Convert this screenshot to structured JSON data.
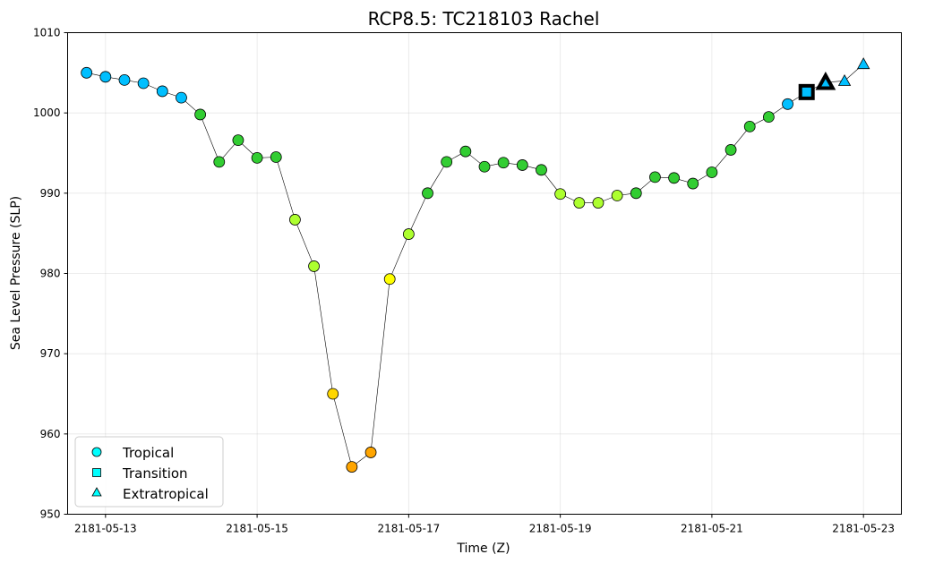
{
  "chart_data": {
    "type": "scatter",
    "title": "RCP8.5: TC218103 Rachel",
    "xlabel": "Time (Z)",
    "ylabel": "Sea Level Pressure (SLP)",
    "ylim": [
      950,
      1010
    ],
    "yticks": [
      950,
      960,
      970,
      980,
      990,
      1000,
      1010
    ],
    "xlim": [
      "2181-05-12 12:00",
      "2181-05-23 12:00"
    ],
    "xticks": [
      "2181-05-13",
      "2181-05-15",
      "2181-05-17",
      "2181-05-19",
      "2181-05-21",
      "2181-05-23"
    ],
    "grid": true,
    "legend_position": "bottom-left",
    "legend": [
      {
        "label": "Tropical",
        "marker": "circle"
      },
      {
        "label": "Transition",
        "marker": "square"
      },
      {
        "label": "Extratropical",
        "marker": "triangle"
      }
    ],
    "colors": {
      "td": "#00bfff",
      "ts": "#32cd32",
      "cat1": "#adff2f",
      "cat2": "#ffff00",
      "cat3": "#ffd700",
      "cat4": "#ffa500",
      "legend_marker": "#00ffff",
      "line": "#000000",
      "edge": "#000000"
    },
    "points": [
      {
        "time": "2181-05-12 18:00",
        "slp": 1005.0,
        "type": "tropical",
        "color": "td"
      },
      {
        "time": "2181-05-13 00:00",
        "slp": 1004.5,
        "type": "tropical",
        "color": "td"
      },
      {
        "time": "2181-05-13 06:00",
        "slp": 1004.1,
        "type": "tropical",
        "color": "td"
      },
      {
        "time": "2181-05-13 12:00",
        "slp": 1003.7,
        "type": "tropical",
        "color": "td"
      },
      {
        "time": "2181-05-13 18:00",
        "slp": 1002.7,
        "type": "tropical",
        "color": "td"
      },
      {
        "time": "2181-05-14 00:00",
        "slp": 1001.9,
        "type": "tropical",
        "color": "td"
      },
      {
        "time": "2181-05-14 06:00",
        "slp": 999.8,
        "type": "tropical",
        "color": "ts"
      },
      {
        "time": "2181-05-14 12:00",
        "slp": 993.9,
        "type": "tropical",
        "color": "ts"
      },
      {
        "time": "2181-05-14 18:00",
        "slp": 996.6,
        "type": "tropical",
        "color": "ts"
      },
      {
        "time": "2181-05-15 00:00",
        "slp": 994.4,
        "type": "tropical",
        "color": "ts"
      },
      {
        "time": "2181-05-15 06:00",
        "slp": 994.5,
        "type": "tropical",
        "color": "ts"
      },
      {
        "time": "2181-05-15 12:00",
        "slp": 986.7,
        "type": "tropical",
        "color": "cat1"
      },
      {
        "time": "2181-05-15 18:00",
        "slp": 980.9,
        "type": "tropical",
        "color": "cat1"
      },
      {
        "time": "2181-05-16 00:00",
        "slp": 965.0,
        "type": "tropical",
        "color": "cat3"
      },
      {
        "time": "2181-05-16 06:00",
        "slp": 955.9,
        "type": "tropical",
        "color": "cat4"
      },
      {
        "time": "2181-05-16 12:00",
        "slp": 957.7,
        "type": "tropical",
        "color": "cat4"
      },
      {
        "time": "2181-05-16 18:00",
        "slp": 979.3,
        "type": "tropical",
        "color": "cat2"
      },
      {
        "time": "2181-05-17 00:00",
        "slp": 984.9,
        "type": "tropical",
        "color": "cat1"
      },
      {
        "time": "2181-05-17 06:00",
        "slp": 990.0,
        "type": "tropical",
        "color": "ts"
      },
      {
        "time": "2181-05-17 12:00",
        "slp": 993.9,
        "type": "tropical",
        "color": "ts"
      },
      {
        "time": "2181-05-17 18:00",
        "slp": 995.2,
        "type": "tropical",
        "color": "ts"
      },
      {
        "time": "2181-05-18 00:00",
        "slp": 993.3,
        "type": "tropical",
        "color": "ts"
      },
      {
        "time": "2181-05-18 06:00",
        "slp": 993.8,
        "type": "tropical",
        "color": "ts"
      },
      {
        "time": "2181-05-18 12:00",
        "slp": 993.5,
        "type": "tropical",
        "color": "ts"
      },
      {
        "time": "2181-05-18 18:00",
        "slp": 992.9,
        "type": "tropical",
        "color": "ts"
      },
      {
        "time": "2181-05-19 00:00",
        "slp": 989.9,
        "type": "tropical",
        "color": "cat1"
      },
      {
        "time": "2181-05-19 06:00",
        "slp": 988.8,
        "type": "tropical",
        "color": "cat1"
      },
      {
        "time": "2181-05-19 12:00",
        "slp": 988.8,
        "type": "tropical",
        "color": "cat1"
      },
      {
        "time": "2181-05-19 18:00",
        "slp": 989.7,
        "type": "tropical",
        "color": "cat1"
      },
      {
        "time": "2181-05-20 00:00",
        "slp": 990.0,
        "type": "tropical",
        "color": "ts"
      },
      {
        "time": "2181-05-20 06:00",
        "slp": 992.0,
        "type": "tropical",
        "color": "ts"
      },
      {
        "time": "2181-05-20 12:00",
        "slp": 991.9,
        "type": "tropical",
        "color": "ts"
      },
      {
        "time": "2181-05-20 18:00",
        "slp": 991.2,
        "type": "tropical",
        "color": "ts"
      },
      {
        "time": "2181-05-21 00:00",
        "slp": 992.6,
        "type": "tropical",
        "color": "ts"
      },
      {
        "time": "2181-05-21 06:00",
        "slp": 995.4,
        "type": "tropical",
        "color": "ts"
      },
      {
        "time": "2181-05-21 12:00",
        "slp": 998.3,
        "type": "tropical",
        "color": "ts"
      },
      {
        "time": "2181-05-21 18:00",
        "slp": 999.5,
        "type": "tropical",
        "color": "ts"
      },
      {
        "time": "2181-05-22 00:00",
        "slp": 1001.1,
        "type": "tropical",
        "color": "td"
      },
      {
        "time": "2181-05-22 06:00",
        "slp": 1002.6,
        "type": "transition",
        "color": "td",
        "highlight": true
      },
      {
        "time": "2181-05-22 12:00",
        "slp": 1003.8,
        "type": "extratropical",
        "color": "td",
        "highlight": true
      },
      {
        "time": "2181-05-22 18:00",
        "slp": 1004.0,
        "type": "extratropical",
        "color": "td"
      },
      {
        "time": "2181-05-23 00:00",
        "slp": 1006.1,
        "type": "extratropical",
        "color": "td"
      }
    ]
  }
}
